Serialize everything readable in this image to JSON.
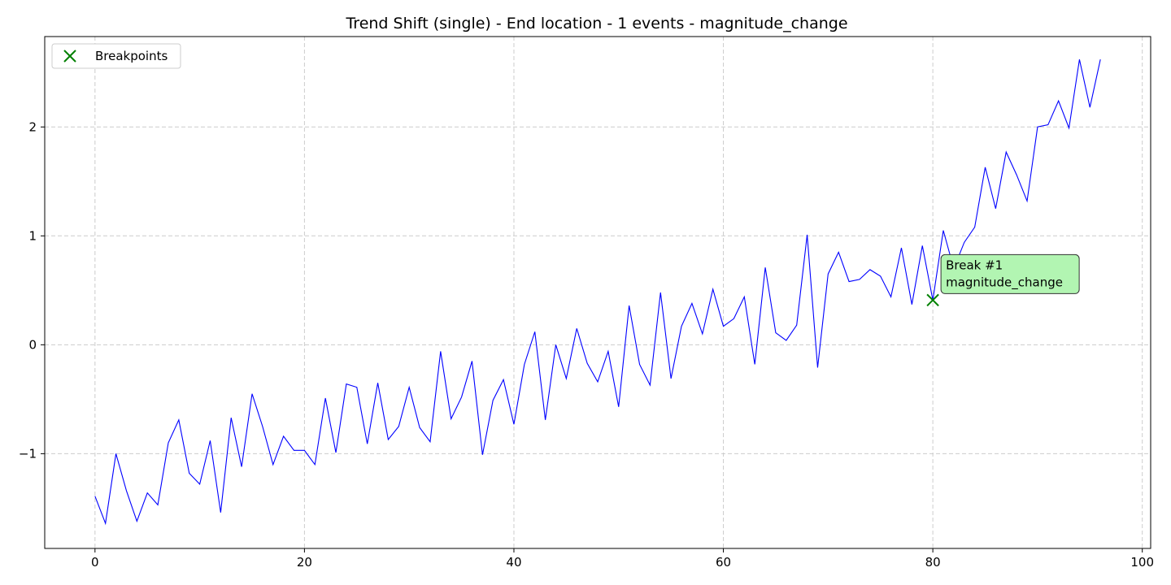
{
  "chart_data": {
    "type": "line",
    "title": "Trend Shift (single) - End location - 1 events - magnitude_change",
    "xlabel": "",
    "ylabel": "",
    "xlim": [
      -4.8,
      100.8
    ],
    "ylim": [
      -1.87,
      2.83
    ],
    "xticks": [
      0,
      20,
      40,
      60,
      80,
      100
    ],
    "yticks": [
      -1,
      0,
      1,
      2
    ],
    "grid": true,
    "grid_style": "dashed",
    "legend_position": "top-left",
    "series": [
      {
        "color": "#0000ff",
        "x": [
          0,
          1,
          2,
          3,
          4,
          5,
          6,
          7,
          8,
          9,
          10,
          11,
          12,
          13,
          14,
          15,
          16,
          17,
          18,
          19,
          20,
          21,
          22,
          23,
          24,
          25,
          26,
          27,
          28,
          29,
          30,
          31,
          32,
          33,
          34,
          35,
          36,
          37,
          38,
          39,
          40,
          41,
          42,
          43,
          44,
          45,
          46,
          47,
          48,
          49,
          50,
          51,
          52,
          53,
          54,
          55,
          56,
          57,
          58,
          59,
          60,
          61,
          62,
          63,
          64,
          65,
          66,
          67,
          68,
          69,
          70,
          71,
          72,
          73,
          74,
          75,
          76,
          77,
          78,
          79,
          80,
          81,
          82,
          83,
          84,
          85,
          86,
          87,
          88,
          89,
          90,
          91,
          92,
          93,
          94,
          95,
          96
        ],
        "y": [
          -1.39,
          -1.64,
          -1.0,
          -1.34,
          -1.62,
          -1.36,
          -1.47,
          -0.9,
          -0.69,
          -1.18,
          -1.28,
          -0.88,
          -1.54,
          -0.67,
          -1.12,
          -0.45,
          -0.75,
          -1.1,
          -0.84,
          -0.97,
          -0.97,
          -1.1,
          -0.49,
          -0.99,
          -0.36,
          -0.39,
          -0.91,
          -0.35,
          -0.87,
          -0.75,
          -0.39,
          -0.76,
          -0.89,
          -0.06,
          -0.68,
          -0.48,
          -0.15,
          -1.01,
          -0.51,
          -0.32,
          -0.73,
          -0.18,
          0.12,
          -0.69,
          0.0,
          -0.31,
          0.15,
          -0.17,
          -0.34,
          -0.06,
          -0.57,
          0.36,
          -0.18,
          -0.37,
          0.48,
          -0.31,
          0.17,
          0.38,
          0.1,
          0.51,
          0.17,
          0.24,
          0.44,
          -0.18,
          0.71,
          0.11,
          0.04,
          0.18,
          1.01,
          -0.21,
          0.65,
          0.85,
          0.58,
          0.6,
          0.69,
          0.63,
          0.44,
          0.89,
          0.37,
          0.91,
          0.41,
          1.05,
          0.7,
          0.94,
          1.08,
          1.63,
          1.25,
          1.77,
          1.56,
          1.32,
          2.0,
          2.02,
          2.24,
          1.99,
          2.62,
          2.18,
          2.62
        ]
      }
    ],
    "breakpoints": {
      "name": "Breakpoints",
      "color": "#008000",
      "points": [
        {
          "x": 80,
          "y": 0.41,
          "label": "Break #1\nmagnitude_change",
          "annotation_color": "#b2f5b2"
        }
      ]
    }
  }
}
